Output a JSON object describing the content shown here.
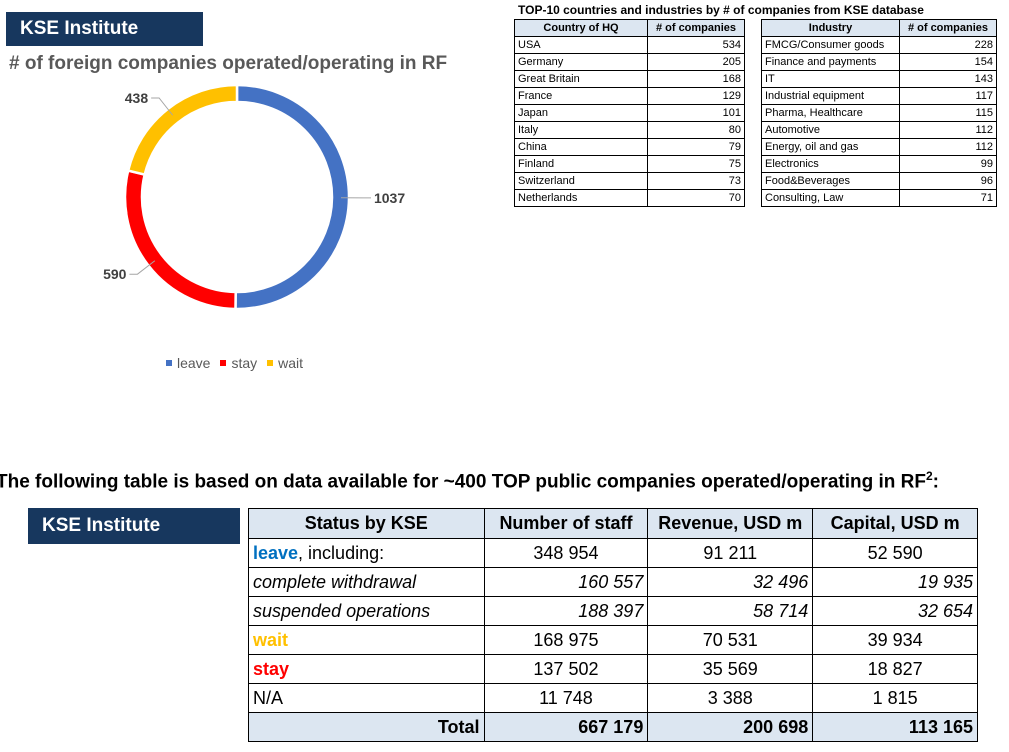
{
  "header": {
    "badge_top": "KSE Institute",
    "badge_bottom": "KSE Institute"
  },
  "chart_data": {
    "type": "pie",
    "variant": "donut",
    "title": "# of foreign companies operated/operating in RF",
    "categories": [
      "leave",
      "stay",
      "wait"
    ],
    "values": [
      1037,
      590,
      438
    ],
    "colors": [
      "#4472c4",
      "#ff0000",
      "#ffc000"
    ],
    "legend_position": "bottom"
  },
  "top10": {
    "title": "TOP-10 countries and industries by # of companies from KSE database",
    "countries": {
      "headers": [
        "Country of HQ",
        "# of companies"
      ],
      "rows": [
        [
          "USA",
          "534"
        ],
        [
          "Germany",
          "205"
        ],
        [
          "Great Britain",
          "168"
        ],
        [
          "France",
          "129"
        ],
        [
          "Japan",
          "101"
        ],
        [
          "Italy",
          "80"
        ],
        [
          "China",
          "79"
        ],
        [
          "Finland",
          "75"
        ],
        [
          "Switzerland",
          "73"
        ],
        [
          "Netherlands",
          "70"
        ]
      ]
    },
    "industries": {
      "headers": [
        "Industry",
        "# of companies"
      ],
      "rows": [
        [
          "FMCG/Consumer goods",
          "228"
        ],
        [
          "Finance and payments",
          "154"
        ],
        [
          "IT",
          "143"
        ],
        [
          "Industrial equipment",
          "117"
        ],
        [
          "Pharma, Healthcare",
          "115"
        ],
        [
          "Automotive",
          "112"
        ],
        [
          "Energy, oil and gas",
          "112"
        ],
        [
          "Electronics",
          "99"
        ],
        [
          "Food&Beverages",
          "96"
        ],
        [
          "Consulting, Law",
          "71"
        ]
      ]
    }
  },
  "status_table": {
    "heading": "The following table is based on data available for ~400 TOP public companies operated/operating in RF",
    "heading_sup": "2",
    "heading_suffix": ":",
    "headers": [
      "Status by KSE",
      "Number of staff",
      "Revenue, USD m",
      "Capital, USD m"
    ],
    "leave_keyword": "leave",
    "leave_suffix": ", including:",
    "leave_values": [
      "348 954",
      "91 211",
      "52 590"
    ],
    "complete_label": "complete withdrawal",
    "complete_values": [
      "160 557",
      "32 496",
      "19 935"
    ],
    "suspended_label": "suspended operations",
    "suspended_values": [
      "188 397",
      "58 714",
      "32 654"
    ],
    "wait_label": "wait",
    "wait_values": [
      "168 975",
      "70 531",
      "39 934"
    ],
    "stay_label": "stay",
    "stay_values": [
      "137 502",
      "35 569",
      "18 827"
    ],
    "na_label": "N/A",
    "na_values": [
      "11 748",
      "3 388",
      "1 815"
    ],
    "total_label": "Total",
    "total_values": [
      "667 179",
      "200 698",
      "113 165"
    ],
    "colors": {
      "leave": "#0070c0",
      "wait": "#ffc000",
      "stay": "#ff0000"
    }
  }
}
